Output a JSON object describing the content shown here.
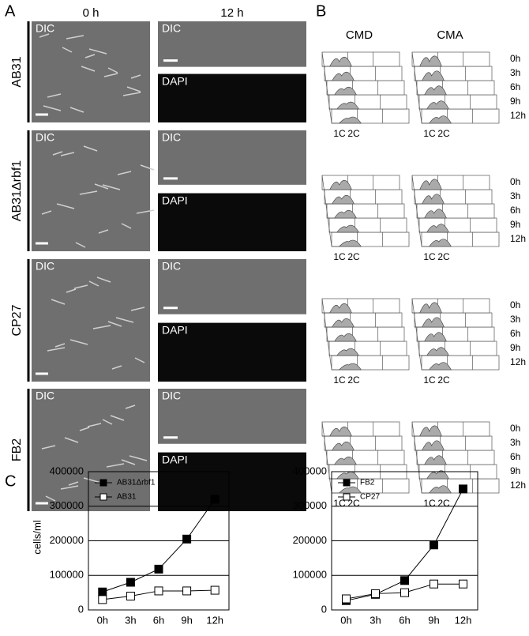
{
  "panel_a": {
    "label": "A",
    "columns": [
      "0 h",
      "12 h"
    ],
    "strains": [
      "AB31",
      "AB31Δrbf1",
      "CP27",
      "FB2"
    ],
    "image_labels": [
      "DIC",
      "DAPI"
    ]
  },
  "panel_b": {
    "label": "B",
    "columns": [
      "CMD",
      "CMA"
    ],
    "times": [
      "12h",
      "9h",
      "6h",
      "3h",
      "0h"
    ],
    "peaks": [
      "1C",
      "2C"
    ]
  },
  "panel_c": {
    "label": "C"
  },
  "chart_data": [
    {
      "type": "line",
      "y_label": "cells/ml",
      "categories": [
        "0h",
        "3h",
        "6h",
        "9h",
        "12h"
      ],
      "ylim": [
        0,
        400000
      ],
      "yticks": [
        0,
        100000,
        200000,
        300000,
        400000
      ],
      "grid": true,
      "legend": "top-left",
      "series": [
        {
          "name": "AB31Δrbf1",
          "color": "#000000",
          "marker": "filled-square",
          "values": [
            52000,
            80000,
            118000,
            205000,
            320000
          ]
        },
        {
          "name": "AB31",
          "color": "#000000",
          "marker": "open-square",
          "values": [
            30000,
            40000,
            55000,
            55000,
            57000
          ]
        }
      ]
    },
    {
      "type": "line",
      "categories": [
        "0h",
        "3h",
        "6h",
        "9h",
        "12h"
      ],
      "ylim": [
        0,
        400000
      ],
      "yticks": [
        0,
        100000,
        200000,
        300000,
        400000
      ],
      "grid": true,
      "legend": "top-left",
      "series": [
        {
          "name": "FB2",
          "color": "#000000",
          "marker": "filled-square",
          "values": [
            27000,
            45000,
            85000,
            188000,
            350000
          ]
        },
        {
          "name": "CP27",
          "color": "#000000",
          "marker": "open-square",
          "values": [
            32000,
            47000,
            50000,
            75000,
            75000
          ]
        }
      ]
    }
  ]
}
